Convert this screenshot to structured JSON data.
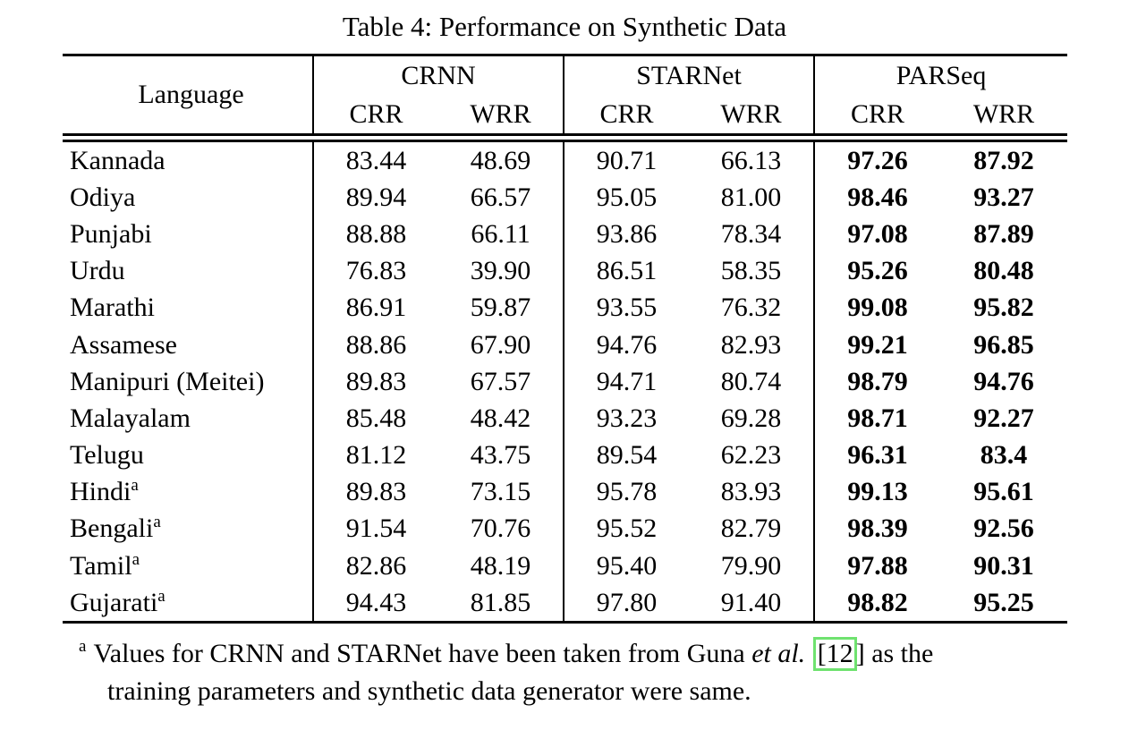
{
  "title": "Table 4: Performance on Synthetic Data",
  "table": {
    "language_header": "Language",
    "groups": [
      {
        "label": "CRNN",
        "sub": [
          "CRR",
          "WRR"
        ]
      },
      {
        "label": "STARNet",
        "sub": [
          "CRR",
          "WRR"
        ]
      },
      {
        "label": "PARSeq",
        "sub": [
          "CRR",
          "WRR"
        ]
      }
    ],
    "rows": [
      {
        "language": "Kannada",
        "sup": "",
        "crnn_crr": "83.44",
        "crnn_wrr": "48.69",
        "starnet_crr": "90.71",
        "starnet_wrr": "66.13",
        "parseq_crr": "97.26",
        "parseq_wrr": "87.92"
      },
      {
        "language": "Odiya",
        "sup": "",
        "crnn_crr": "89.94",
        "crnn_wrr": "66.57",
        "starnet_crr": "95.05",
        "starnet_wrr": "81.00",
        "parseq_crr": "98.46",
        "parseq_wrr": "93.27"
      },
      {
        "language": "Punjabi",
        "sup": "",
        "crnn_crr": "88.88",
        "crnn_wrr": "66.11",
        "starnet_crr": "93.86",
        "starnet_wrr": "78.34",
        "parseq_crr": "97.08",
        "parseq_wrr": "87.89"
      },
      {
        "language": "Urdu",
        "sup": "",
        "crnn_crr": "76.83",
        "crnn_wrr": "39.90",
        "starnet_crr": "86.51",
        "starnet_wrr": "58.35",
        "parseq_crr": "95.26",
        "parseq_wrr": "80.48"
      },
      {
        "language": "Marathi",
        "sup": "",
        "crnn_crr": "86.91",
        "crnn_wrr": "59.87",
        "starnet_crr": "93.55",
        "starnet_wrr": "76.32",
        "parseq_crr": "99.08",
        "parseq_wrr": "95.82"
      },
      {
        "language": "Assamese",
        "sup": "",
        "crnn_crr": "88.86",
        "crnn_wrr": "67.90",
        "starnet_crr": "94.76",
        "starnet_wrr": "82.93",
        "parseq_crr": "99.21",
        "parseq_wrr": "96.85"
      },
      {
        "language": "Manipuri (Meitei)",
        "sup": "",
        "crnn_crr": "89.83",
        "crnn_wrr": "67.57",
        "starnet_crr": "94.71",
        "starnet_wrr": "80.74",
        "parseq_crr": "98.79",
        "parseq_wrr": "94.76"
      },
      {
        "language": "Malayalam",
        "sup": "",
        "crnn_crr": "85.48",
        "crnn_wrr": "48.42",
        "starnet_crr": "93.23",
        "starnet_wrr": "69.28",
        "parseq_crr": "98.71",
        "parseq_wrr": "92.27"
      },
      {
        "language": "Telugu",
        "sup": "",
        "crnn_crr": "81.12",
        "crnn_wrr": "43.75",
        "starnet_crr": "89.54",
        "starnet_wrr": "62.23",
        "parseq_crr": "96.31",
        "parseq_wrr": "83.4"
      },
      {
        "language": "Hindi",
        "sup": "a",
        "crnn_crr": "89.83",
        "crnn_wrr": "73.15",
        "starnet_crr": "95.78",
        "starnet_wrr": "83.93",
        "parseq_crr": "99.13",
        "parseq_wrr": "95.61"
      },
      {
        "language": "Bengali",
        "sup": "a",
        "crnn_crr": "91.54",
        "crnn_wrr": "70.76",
        "starnet_crr": "95.52",
        "starnet_wrr": "82.79",
        "parseq_crr": "98.39",
        "parseq_wrr": "92.56"
      },
      {
        "language": "Tamil",
        "sup": "a",
        "crnn_crr": "82.86",
        "crnn_wrr": "48.19",
        "starnet_crr": "95.40",
        "starnet_wrr": "79.90",
        "parseq_crr": "97.88",
        "parseq_wrr": "90.31"
      },
      {
        "language": "Gujarati",
        "sup": "a",
        "crnn_crr": "94.43",
        "crnn_wrr": "81.85",
        "starnet_crr": "97.80",
        "starnet_wrr": "91.40",
        "parseq_crr": "98.82",
        "parseq_wrr": "95.25"
      }
    ]
  },
  "footnote": {
    "marker": "a",
    "line1_pre": "Values for CRNN and STARNet have been taken from Guna",
    "etal": "et al.",
    "cite": "[12",
    "cite_close": "]",
    "line1_post": "as the",
    "line2": "training parameters and synthetic data generator were same."
  },
  "colors": {
    "cite_box": "#6fe26f"
  }
}
